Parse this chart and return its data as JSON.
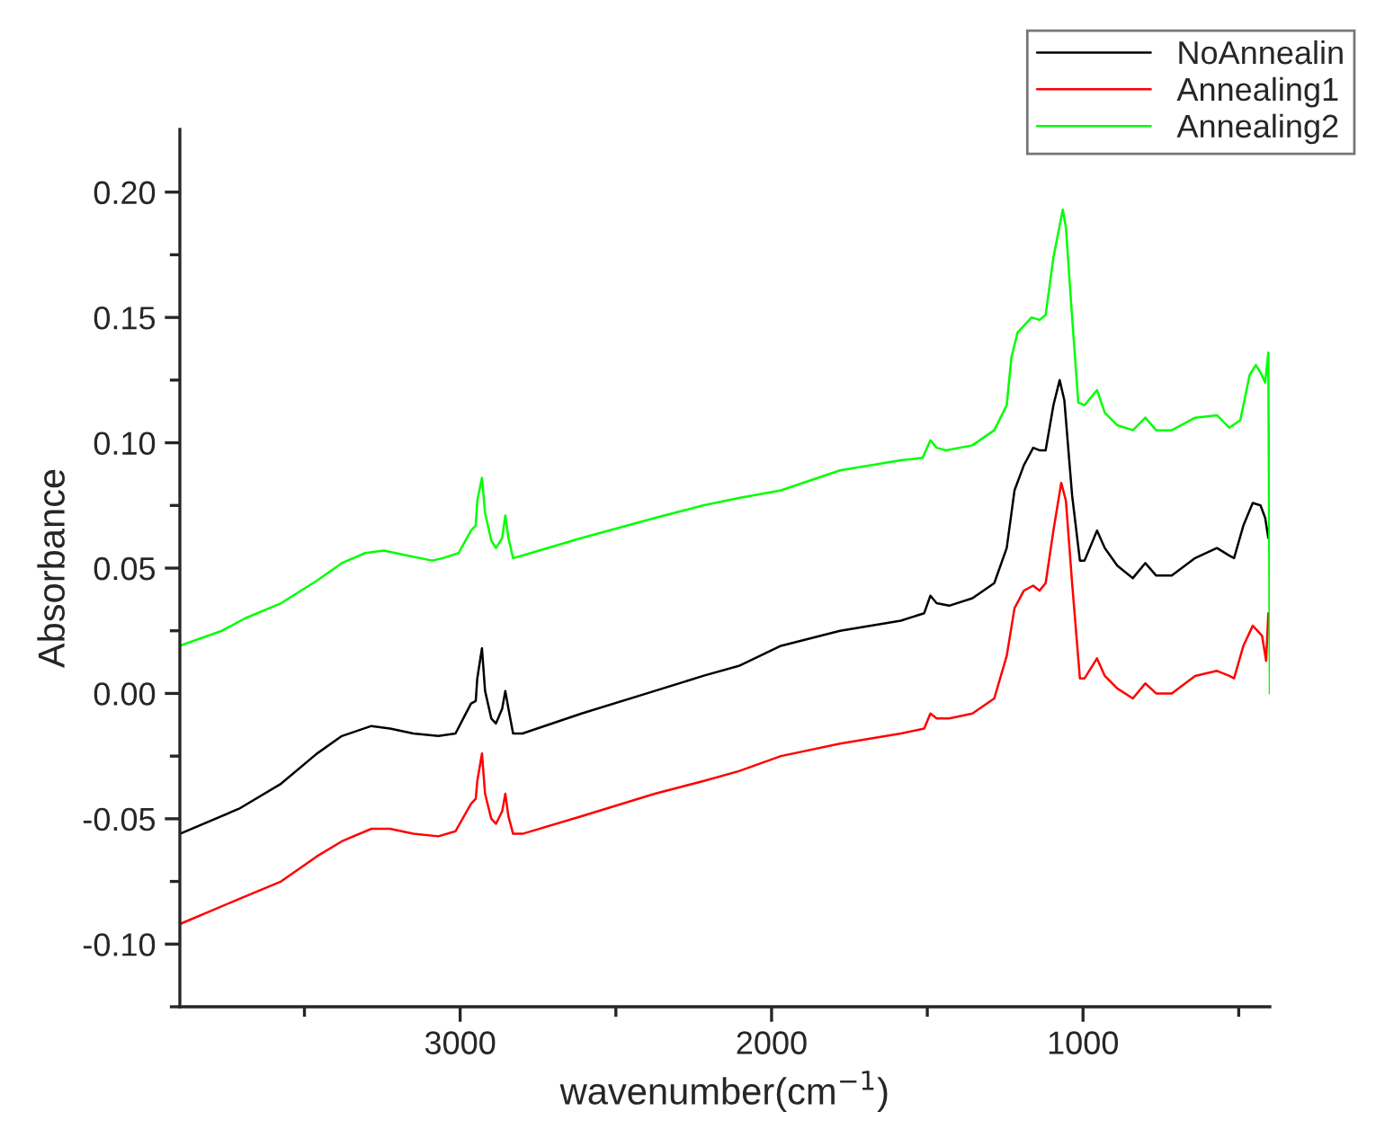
{
  "chart_data": {
    "type": "line",
    "xlabel": "wavenumber(cm$^{−1}$)",
    "ylabel": "Absorbance",
    "xlim": [
      3900,
      400
    ],
    "ylim": [
      -0.125,
      0.225
    ],
    "xticks": [
      {
        "value": 3500,
        "label": null
      },
      3000,
      {
        "value": 2500,
        "label": null
      },
      2000,
      {
        "value": 1500,
        "label": null
      },
      1000,
      {
        "value": 500,
        "label": null
      }
    ],
    "yticks": [
      {
        "value": -0.125,
        "label": null
      },
      {
        "value": -0.1,
        "label": "-0.10"
      },
      {
        "value": -0.075,
        "label": null
      },
      {
        "value": -0.05,
        "label": "-0.05"
      },
      {
        "value": -0.025,
        "label": null
      },
      {
        "value": 0,
        "label": "0.00"
      },
      {
        "value": 0.025,
        "label": null
      },
      {
        "value": 0.05,
        "label": "0.05"
      },
      {
        "value": 0.075,
        "label": null
      },
      {
        "value": 0.1,
        "label": "0.10"
      },
      {
        "value": 0.125,
        "label": null
      },
      {
        "value": 0.15,
        "label": "0.15"
      },
      {
        "value": 0.175,
        "label": null
      },
      {
        "value": 0.2,
        "label": "0.20"
      }
    ],
    "grid": false,
    "legend": "top right",
    "marker": "none",
    "line_style": "solid",
    "series": [
      {
        "name": "NoAnnealin",
        "color": "#000000",
        "x": [
          3900,
          3710,
          3575,
          3460,
          3380,
          3285,
          3225,
          3150,
          3070,
          3015,
          2965,
          2950,
          2945,
          2930,
          2920,
          2900,
          2885,
          2865,
          2855,
          2845,
          2830,
          2800,
          2610,
          2375,
          2220,
          2105,
          1970,
          1780,
          1585,
          1510,
          1490,
          1470,
          1430,
          1355,
          1285,
          1245,
          1220,
          1190,
          1160,
          1140,
          1120,
          1095,
          1075,
          1060,
          1035,
          1010,
          995,
          955,
          930,
          890,
          840,
          800,
          765,
          715,
          640,
          570,
          530,
          515,
          485,
          455,
          430,
          415,
          405
        ],
        "values": [
          -0.056,
          -0.046,
          -0.036,
          -0.024,
          -0.017,
          -0.013,
          -0.014,
          -0.016,
          -0.017,
          -0.016,
          -0.004,
          -0.003,
          0.006,
          0.018,
          0.001,
          -0.01,
          -0.012,
          -0.006,
          0.001,
          -0.006,
          -0.016,
          -0.016,
          -0.008,
          0.001,
          0.007,
          0.011,
          0.019,
          0.025,
          0.029,
          0.032,
          0.039,
          0.036,
          0.035,
          0.038,
          0.044,
          0.058,
          0.081,
          0.091,
          0.098,
          0.097,
          0.097,
          0.115,
          0.125,
          0.117,
          0.079,
          0.053,
          0.053,
          0.065,
          0.058,
          0.051,
          0.046,
          0.052,
          0.047,
          0.047,
          0.054,
          0.058,
          0.055,
          0.054,
          0.067,
          0.076,
          0.075,
          0.07,
          0.062
        ]
      },
      {
        "name": "Annealing1",
        "color": "#ff0000",
        "x": [
          3900,
          3710,
          3575,
          3460,
          3380,
          3285,
          3225,
          3150,
          3070,
          3015,
          2965,
          2950,
          2945,
          2930,
          2920,
          2900,
          2885,
          2865,
          2855,
          2845,
          2830,
          2800,
          2610,
          2375,
          2220,
          2105,
          1970,
          1780,
          1585,
          1510,
          1490,
          1470,
          1430,
          1355,
          1285,
          1245,
          1220,
          1190,
          1160,
          1140,
          1120,
          1095,
          1070,
          1055,
          1035,
          1010,
          995,
          955,
          930,
          890,
          840,
          800,
          765,
          715,
          640,
          570,
          530,
          515,
          485,
          455,
          440,
          425,
          412,
          405
        ],
        "values": [
          -0.092,
          -0.082,
          -0.075,
          -0.065,
          -0.059,
          -0.054,
          -0.054,
          -0.056,
          -0.057,
          -0.055,
          -0.044,
          -0.042,
          -0.035,
          -0.024,
          -0.04,
          -0.05,
          -0.052,
          -0.047,
          -0.04,
          -0.049,
          -0.056,
          -0.056,
          -0.049,
          -0.04,
          -0.035,
          -0.031,
          -0.025,
          -0.02,
          -0.016,
          -0.014,
          -0.008,
          -0.01,
          -0.01,
          -0.008,
          -0.002,
          0.015,
          0.034,
          0.041,
          0.043,
          0.041,
          0.044,
          0.065,
          0.084,
          0.077,
          0.044,
          0.006,
          0.006,
          0.014,
          0.007,
          0.002,
          -0.002,
          0.004,
          0.0,
          0.0,
          0.007,
          0.009,
          0.007,
          0.006,
          0.019,
          0.027,
          0.025,
          0.023,
          0.013,
          0.032
        ]
      },
      {
        "name": "Annealing2",
        "color": "#00ff00",
        "x": [
          3900,
          3765,
          3690,
          3575,
          3460,
          3380,
          3305,
          3245,
          3170,
          3090,
          3055,
          3005,
          2965,
          2950,
          2945,
          2930,
          2920,
          2900,
          2885,
          2865,
          2855,
          2845,
          2830,
          2800,
          2610,
          2375,
          2220,
          2105,
          1970,
          1780,
          1585,
          1515,
          1490,
          1470,
          1440,
          1355,
          1285,
          1245,
          1230,
          1210,
          1165,
          1140,
          1120,
          1095,
          1065,
          1055,
          1035,
          1015,
          995,
          955,
          930,
          890,
          840,
          800,
          765,
          715,
          640,
          570,
          530,
          495,
          465,
          445,
          430,
          415,
          405,
          400
        ],
        "values": [
          0.019,
          0.025,
          0.03,
          0.036,
          0.045,
          0.052,
          0.056,
          0.057,
          0.055,
          0.053,
          0.054,
          0.056,
          0.065,
          0.067,
          0.077,
          0.086,
          0.072,
          0.061,
          0.058,
          0.062,
          0.071,
          0.062,
          0.054,
          0.055,
          0.062,
          0.07,
          0.075,
          0.078,
          0.081,
          0.089,
          0.093,
          0.094,
          0.101,
          0.098,
          0.097,
          0.099,
          0.105,
          0.115,
          0.134,
          0.144,
          0.15,
          0.149,
          0.151,
          0.174,
          0.193,
          0.186,
          0.15,
          0.116,
          0.115,
          0.121,
          0.112,
          0.107,
          0.105,
          0.11,
          0.105,
          0.105,
          0.11,
          0.111,
          0.106,
          0.109,
          0.127,
          0.131,
          0.128,
          0.124,
          0.136,
          0.0
        ]
      }
    ]
  }
}
